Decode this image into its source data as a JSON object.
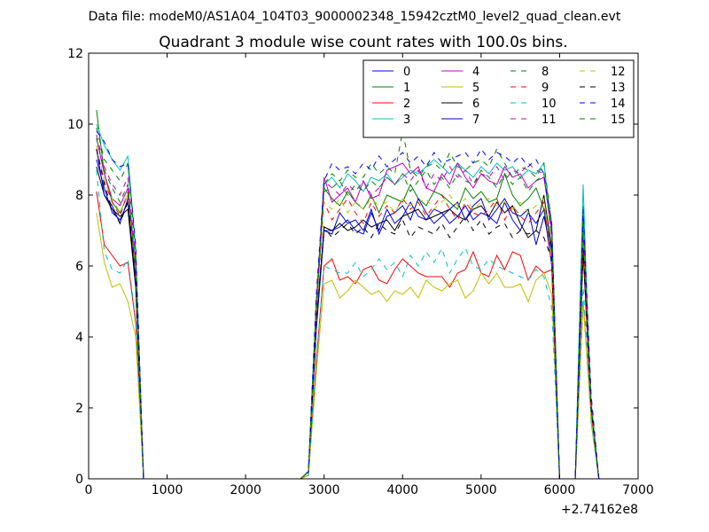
{
  "chart_data": {
    "type": "line",
    "suptitle": "Data file: modeM0/AS1A04_104T03_9000002348_15942cztM0_level2_quad_clean.evt",
    "title": "Quadrant 3 module wise count rates with 100.0s bins.",
    "xlabel": "",
    "ylabel": "",
    "xlim": [
      0,
      7000
    ],
    "ylim": [
      0,
      12
    ],
    "x_ticks": [
      "0",
      "1000",
      "2000",
      "3000",
      "4000",
      "5000",
      "6000",
      "7000"
    ],
    "y_ticks": [
      "0",
      "2",
      "4",
      "6",
      "8",
      "10",
      "12"
    ],
    "x_offset_label": "+2.74162e8",
    "grid": false,
    "legend_position": "top-right",
    "x": [
      100,
      200,
      300,
      400,
      500,
      600,
      700,
      800,
      900,
      1000,
      1100,
      1200,
      1300,
      1400,
      1500,
      1600,
      1700,
      1800,
      1900,
      2000,
      2100,
      2200,
      2300,
      2400,
      2500,
      2600,
      2700,
      2800,
      2900,
      3000,
      3100,
      3200,
      3300,
      3400,
      3500,
      3600,
      3700,
      3800,
      3900,
      4000,
      4100,
      4200,
      4300,
      4400,
      4500,
      4600,
      4700,
      4800,
      4900,
      5000,
      5100,
      5200,
      5300,
      5400,
      5500,
      5600,
      5700,
      5800,
      5900,
      6000,
      6100,
      6200,
      6300,
      6400,
      6500
    ],
    "series": [
      {
        "name": "0",
        "color": "#0000ff",
        "dash": "solid",
        "values": [
          9.0,
          8.2,
          7.5,
          7.3,
          7.8,
          5.5,
          0,
          0,
          0,
          0,
          0,
          0,
          0,
          0,
          0,
          0,
          0,
          0,
          0,
          0,
          0,
          0,
          0,
          0,
          0,
          0,
          0,
          0.2,
          4.2,
          7.0,
          7.0,
          7.1,
          7.3,
          7.0,
          6.9,
          7.5,
          7.0,
          7.6,
          7.2,
          7.4,
          7.8,
          7.4,
          7.3,
          7.6,
          7.5,
          7.2,
          7.4,
          7.7,
          7.3,
          7.5,
          7.4,
          7.2,
          7.8,
          7.3,
          7.0,
          7.5,
          7.2,
          7.6,
          6.0,
          0,
          0,
          0,
          6.5,
          2.0,
          0
        ]
      },
      {
        "name": "1",
        "color": "#008000",
        "dash": "solid",
        "values": [
          10.4,
          8.6,
          7.8,
          7.5,
          8.0,
          5.8,
          0,
          0,
          0,
          0,
          0,
          0,
          0,
          0,
          0,
          0,
          0,
          0,
          0,
          0,
          0,
          0,
          0,
          0,
          0,
          0,
          0,
          0.2,
          4.6,
          8.2,
          7.9,
          7.7,
          8.1,
          7.8,
          7.6,
          8.0,
          7.5,
          8.0,
          7.9,
          7.8,
          8.3,
          7.9,
          7.7,
          8.1,
          8.0,
          7.8,
          7.6,
          8.2,
          7.9,
          8.1,
          7.8,
          7.9,
          8.6,
          8.0,
          7.7,
          7.9,
          8.2,
          7.6,
          6.5,
          0,
          0,
          0,
          7.7,
          2.1,
          0
        ]
      },
      {
        "name": "2",
        "color": "#ff0000",
        "dash": "solid",
        "values": [
          8.1,
          6.6,
          6.3,
          6.0,
          6.1,
          4.4,
          0,
          0,
          0,
          0,
          0,
          0,
          0,
          0,
          0,
          0,
          0,
          0,
          0,
          0,
          0,
          0,
          0,
          0,
          0,
          0,
          0,
          0.1,
          3.3,
          6.0,
          6.2,
          5.6,
          5.7,
          5.5,
          5.9,
          6.0,
          5.6,
          5.5,
          5.9,
          6.2,
          6.0,
          5.8,
          5.7,
          5.7,
          5.7,
          5.4,
          5.8,
          5.9,
          6.4,
          5.8,
          5.7,
          6.3,
          5.9,
          6.4,
          6.3,
          5.6,
          6.0,
          5.8,
          5.9,
          0,
          0,
          0,
          5.0,
          1.8,
          0
        ]
      },
      {
        "name": "3",
        "color": "#00bfbf",
        "dash": "solid",
        "values": [
          10.0,
          9.4,
          9.0,
          8.7,
          9.1,
          6.5,
          0,
          0,
          0,
          0,
          0,
          0,
          0,
          0,
          0,
          0,
          0,
          0,
          0,
          0,
          0,
          0,
          0,
          0,
          0,
          0,
          0,
          0.2,
          5.0,
          8.3,
          8.5,
          8.2,
          8.6,
          8.4,
          8.1,
          8.5,
          8.4,
          8.6,
          8.3,
          8.5,
          8.7,
          8.6,
          8.8,
          9.0,
          8.8,
          8.6,
          8.9,
          8.7,
          8.5,
          8.8,
          8.6,
          8.9,
          8.7,
          8.8,
          8.5,
          8.7,
          8.6,
          8.9,
          7.0,
          0,
          0,
          0,
          8.3,
          1.6,
          0
        ]
      },
      {
        "name": "4",
        "color": "#bf00bf",
        "dash": "solid",
        "values": [
          9.6,
          8.6,
          7.9,
          7.7,
          8.2,
          6.0,
          0,
          0,
          0,
          0,
          0,
          0,
          0,
          0,
          0,
          0,
          0,
          0,
          0,
          0,
          0,
          0,
          0,
          0,
          0,
          0,
          0,
          0.2,
          4.8,
          8.5,
          7.8,
          8.0,
          8.2,
          7.8,
          8.4,
          7.9,
          8.0,
          8.7,
          8.8,
          8.9,
          8.6,
          8.8,
          8.2,
          8.1,
          8.6,
          8.3,
          8.9,
          8.5,
          8.2,
          8.6,
          8.4,
          8.3,
          8.8,
          8.5,
          8.6,
          8.2,
          8.4,
          8.5,
          7.0,
          0,
          0,
          0,
          7.0,
          2.0,
          0
        ]
      },
      {
        "name": "5",
        "color": "#bfbf00",
        "dash": "solid",
        "values": [
          7.5,
          6.1,
          5.4,
          5.5,
          5.0,
          4.0,
          0,
          0,
          0,
          0,
          0,
          0,
          0,
          0,
          0,
          0,
          0,
          0,
          0,
          0,
          0,
          0,
          0,
          0,
          0,
          0,
          0,
          0.1,
          3.0,
          5.5,
          5.6,
          5.1,
          5.3,
          5.6,
          5.4,
          5.2,
          5.3,
          5.0,
          5.3,
          5.2,
          5.4,
          5.1,
          5.6,
          5.4,
          5.3,
          5.5,
          5.6,
          5.1,
          5.3,
          5.8,
          5.5,
          5.8,
          5.4,
          5.4,
          5.5,
          5.0,
          5.6,
          5.8,
          5.2,
          0,
          0,
          0,
          5.0,
          1.7,
          0
        ]
      },
      {
        "name": "6",
        "color": "#000000",
        "dash": "solid",
        "values": [
          8.8,
          8.0,
          7.6,
          7.4,
          7.6,
          5.4,
          0,
          0,
          0,
          0,
          0,
          0,
          0,
          0,
          0,
          0,
          0,
          0,
          0,
          0,
          0,
          0,
          0,
          0,
          0,
          0,
          0,
          0.2,
          4.3,
          7.1,
          7.0,
          7.2,
          7.0,
          7.1,
          7.3,
          7.1,
          7.2,
          7.3,
          7.0,
          7.4,
          7.5,
          7.6,
          7.3,
          7.4,
          7.5,
          7.6,
          7.4,
          7.3,
          7.6,
          7.7,
          7.4,
          7.8,
          7.5,
          7.7,
          7.2,
          6.8,
          7.0,
          8.0,
          6.5,
          0,
          0,
          0,
          6.4,
          2.0,
          0
        ]
      },
      {
        "name": "7",
        "color": "#0000cc",
        "dash": "solid",
        "values": [
          9.3,
          8.0,
          7.7,
          7.2,
          7.9,
          5.6,
          0,
          0,
          0,
          0,
          0,
          0,
          0,
          0,
          0,
          0,
          0,
          0,
          0,
          0,
          0,
          0,
          0,
          0,
          0,
          0,
          0,
          0.2,
          4.3,
          7.0,
          6.9,
          7.5,
          7.2,
          7.3,
          7.0,
          7.6,
          6.9,
          7.4,
          7.5,
          7.7,
          7.3,
          7.9,
          7.5,
          7.2,
          7.4,
          7.6,
          7.8,
          7.3,
          7.7,
          7.9,
          7.3,
          7.6,
          7.9,
          7.5,
          7.4,
          7.6,
          6.6,
          7.4,
          6.4,
          0,
          0,
          0,
          6.9,
          2.1,
          0
        ]
      },
      {
        "name": "8",
        "color": "#008000",
        "dash": "dashed",
        "values": [
          9.9,
          9.0,
          8.7,
          8.4,
          8.9,
          6.3,
          0,
          0,
          0,
          0,
          0,
          0,
          0,
          0,
          0,
          0,
          0,
          0,
          0,
          0,
          0,
          0,
          0,
          0,
          0,
          0,
          0,
          0.2,
          5.0,
          8.3,
          8.6,
          8.4,
          8.7,
          8.5,
          8.5,
          8.9,
          8.6,
          8.8,
          8.6,
          9.8,
          8.7,
          8.5,
          8.8,
          8.9,
          8.7,
          9.2,
          8.8,
          8.7,
          8.9,
          9.0,
          8.8,
          9.3,
          8.9,
          8.5,
          8.8,
          8.7,
          8.5,
          8.9,
          7.2,
          0,
          0,
          0,
          7.5,
          2.3,
          0
        ]
      },
      {
        "name": "9",
        "color": "#ff0000",
        "dash": "dashed",
        "values": [
          9.3,
          8.4,
          7.8,
          7.4,
          8.1,
          5.8,
          0,
          0,
          0,
          0,
          0,
          0,
          0,
          0,
          0,
          0,
          0,
          0,
          0,
          0,
          0,
          0,
          0,
          0,
          0,
          0,
          0,
          0.2,
          4.5,
          7.8,
          7.3,
          7.6,
          7.9,
          7.5,
          7.2,
          7.8,
          7.4,
          7.7,
          7.5,
          7.9,
          7.6,
          7.8,
          7.4,
          7.7,
          8.0,
          7.6,
          7.3,
          7.8,
          7.5,
          7.4,
          7.6,
          7.9,
          7.3,
          7.7,
          7.4,
          7.2,
          7.5,
          7.8,
          6.0,
          0,
          0,
          0,
          6.8,
          2.0,
          0
        ]
      },
      {
        "name": "10",
        "color": "#00bfbf",
        "dash": "dashed",
        "values": [
          8.7,
          6.4,
          5.9,
          5.8,
          6.2,
          4.5,
          0,
          0,
          0,
          0,
          0,
          0,
          0,
          0,
          0,
          0,
          0,
          0,
          0,
          0,
          0,
          0,
          0,
          0,
          0,
          0,
          0,
          0.1,
          3.4,
          6.0,
          5.9,
          5.8,
          5.8,
          6.1,
          5.7,
          5.9,
          6.2,
          5.9,
          6.1,
          5.7,
          6.3,
          6.0,
          6.4,
          6.1,
          6.5,
          5.8,
          6.2,
          6.5,
          6.0,
          5.9,
          6.2,
          6.0,
          5.9,
          5.8,
          5.7,
          5.6,
          5.9,
          5.7,
          4.8,
          0,
          0,
          0,
          5.4,
          1.9,
          0
        ]
      },
      {
        "name": "11",
        "color": "#bf00bf",
        "dash": "dashed",
        "values": [
          9.7,
          8.8,
          8.3,
          8.0,
          8.5,
          6.2,
          0,
          0,
          0,
          0,
          0,
          0,
          0,
          0,
          0,
          0,
          0,
          0,
          0,
          0,
          0,
          0,
          0,
          0,
          0,
          0,
          0,
          0.2,
          4.9,
          8.4,
          8.2,
          8.0,
          8.3,
          8.1,
          8.4,
          8.0,
          8.2,
          8.5,
          8.3,
          8.6,
          8.4,
          8.7,
          8.2,
          8.6,
          8.4,
          8.8,
          8.5,
          8.7,
          8.3,
          8.6,
          8.5,
          8.8,
          8.4,
          8.7,
          8.6,
          8.9,
          8.7,
          8.6,
          6.8,
          0,
          0,
          0,
          7.4,
          2.2,
          0
        ]
      },
      {
        "name": "12",
        "color": "#bfbf00",
        "dash": "dashed",
        "values": [
          9.4,
          8.4,
          7.9,
          7.5,
          8.0,
          5.8,
          0,
          0,
          0,
          0,
          0,
          0,
          0,
          0,
          0,
          0,
          0,
          0,
          0,
          0,
          0,
          0,
          0,
          0,
          0,
          0,
          0,
          0.2,
          4.6,
          7.8,
          7.6,
          7.9,
          7.5,
          7.8,
          7.6,
          7.9,
          7.7,
          7.8,
          7.5,
          7.9,
          7.7,
          7.8,
          7.9,
          7.6,
          7.8,
          8.0,
          7.7,
          7.9,
          7.6,
          7.8,
          7.9,
          7.7,
          7.8,
          7.6,
          7.8,
          7.5,
          7.7,
          7.9,
          6.2,
          0,
          0,
          0,
          7.0,
          2.1,
          0
        ]
      },
      {
        "name": "13",
        "color": "#000000",
        "dash": "dashed",
        "values": [
          9.3,
          8.3,
          7.6,
          7.2,
          7.8,
          5.6,
          0,
          0,
          0,
          0,
          0,
          0,
          0,
          0,
          0,
          0,
          0,
          0,
          0,
          0,
          0,
          0,
          0,
          0,
          0,
          0,
          0,
          0.2,
          4.4,
          7.1,
          6.8,
          7.0,
          7.2,
          6.9,
          7.1,
          6.8,
          7.2,
          7.0,
          6.9,
          7.3,
          6.8,
          7.1,
          7.0,
          6.9,
          7.2,
          6.8,
          7.1,
          7.4,
          7.0,
          7.3,
          6.9,
          7.1,
          7.2,
          6.8,
          7.0,
          6.9,
          7.0,
          6.8,
          6.2,
          0,
          0,
          0,
          6.5,
          2.0,
          0
        ]
      },
      {
        "name": "14",
        "color": "#0000ff",
        "dash": "dashed",
        "values": [
          9.8,
          9.5,
          9.0,
          8.8,
          8.9,
          6.6,
          0,
          0,
          0,
          0,
          0,
          0,
          0,
          0,
          0,
          0,
          0,
          0,
          0,
          0,
          0,
          0,
          0,
          0,
          0,
          0,
          0,
          0.2,
          5.2,
          8.4,
          8.9,
          8.7,
          8.8,
          8.6,
          8.9,
          8.7,
          9.1,
          8.8,
          9.0,
          9.2,
          8.9,
          9.1,
          8.8,
          9.2,
          8.9,
          9.0,
          9.1,
          9.2,
          8.9,
          9.3,
          9.0,
          9.2,
          9.1,
          8.9,
          9.1,
          8.8,
          9.0,
          8.6,
          7.2,
          0,
          0,
          0,
          7.6,
          2.4,
          0
        ]
      },
      {
        "name": "15",
        "color": "#008000",
        "dash": "dashed",
        "values": [
          9.6,
          8.7,
          8.2,
          7.8,
          8.3,
          6.0,
          0,
          0,
          0,
          0,
          0,
          0,
          0,
          0,
          0,
          0,
          0,
          0,
          0,
          0,
          0,
          0,
          0,
          0,
          0,
          0,
          0,
          0.2,
          4.8,
          8.1,
          8.2,
          8.4,
          8.0,
          8.3,
          8.1,
          8.4,
          8.2,
          8.5,
          8.3,
          8.6,
          8.1,
          8.4,
          8.7,
          8.3,
          8.5,
          8.2,
          8.6,
          8.4,
          8.3,
          8.7,
          8.5,
          8.2,
          8.6,
          8.3,
          8.5,
          8.1,
          8.4,
          8.6,
          6.8,
          0,
          0,
          0,
          7.3,
          2.2,
          0
        ]
      }
    ]
  }
}
